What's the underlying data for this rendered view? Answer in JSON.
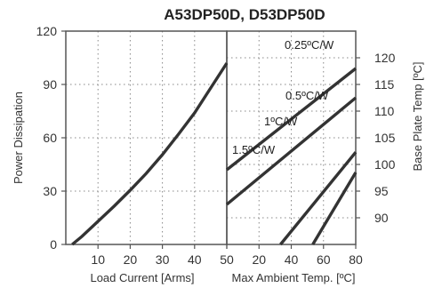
{
  "chart_data": {
    "type": "line",
    "title": "A53DP50D, D53DP50D",
    "left_panel": {
      "xlabel": "Load Current  [Arms]",
      "ylabel": "Power Dissipation",
      "xlim": [
        0,
        50
      ],
      "ylim": [
        0,
        120
      ],
      "xticks": [
        "10",
        "20",
        "30",
        "40",
        "50"
      ],
      "yticks": [
        "0",
        "30",
        "60",
        "90",
        "120"
      ],
      "series": [
        {
          "x": [
            2,
            5,
            10,
            15,
            20,
            25,
            30,
            35,
            40,
            45,
            50
          ],
          "y": [
            0,
            4.5,
            13,
            21.5,
            30.5,
            40,
            50.5,
            62,
            74,
            88,
            102
          ]
        }
      ]
    },
    "right_panel": {
      "xlabel": "Max Ambient Temp. [ºC]",
      "ylabel": "Base Plate Temp [ºC]",
      "xlim": [
        50,
        80
      ],
      "ylim": [
        125,
        85
      ],
      "xticks": [
        "50",
        "20",
        "40",
        "60",
        "80"
      ],
      "yticks": [
        "90",
        "95",
        "100",
        "105",
        "110",
        "115",
        "120"
      ],
      "series": [
        {
          "name": "0.25ºC/W",
          "points": [
            [
              62.5,
              85
            ],
            [
              80,
              102.3
            ]
          ]
        },
        {
          "name": "0.5ºC/W",
          "points": [
            [
              70,
              85
            ],
            [
              80,
              98.5
            ]
          ]
        },
        {
          "name": "1ºC/W",
          "points": [
            [
              50,
              92.5
            ],
            [
              80,
              112.5
            ]
          ]
        },
        {
          "name": "1.5ºC/W",
          "points": [
            [
              50,
              99
            ],
            [
              80,
              118
            ]
          ]
        }
      ]
    },
    "grid": true
  }
}
